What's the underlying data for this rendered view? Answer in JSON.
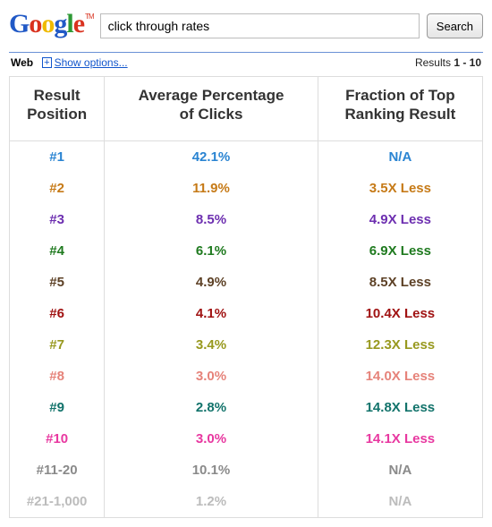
{
  "search": {
    "query": "click through rates",
    "button_label": "Search"
  },
  "bluebar": {
    "web_label": "Web",
    "show_options_label": "Show options...",
    "results_prefix": "Results ",
    "results_range": "1 - 10"
  },
  "table": {
    "headers": {
      "position": "Result\nPosition",
      "percentage": "Average Percentage\nof Clicks",
      "fraction": "Fraction of Top\nRanking Result"
    },
    "rows": [
      {
        "position": "#1",
        "percentage": "42.1%",
        "fraction": "N/A",
        "color": "#2a84d2"
      },
      {
        "position": "#2",
        "percentage": "11.9%",
        "fraction": "3.5X Less",
        "color": "#c67a17"
      },
      {
        "position": "#3",
        "percentage": "8.5%",
        "fraction": "4.9X Less",
        "color": "#6d2fb0"
      },
      {
        "position": "#4",
        "percentage": "6.1%",
        "fraction": "6.9X Less",
        "color": "#1f7a1f"
      },
      {
        "position": "#5",
        "percentage": "4.9%",
        "fraction": "8.5X Less",
        "color": "#5d4126"
      },
      {
        "position": "#6",
        "percentage": "4.1%",
        "fraction": "10.4X Less",
        "color": "#a01212"
      },
      {
        "position": "#7",
        "percentage": "3.4%",
        "fraction": "12.3X Less",
        "color": "#98991f"
      },
      {
        "position": "#8",
        "percentage": "3.0%",
        "fraction": "14.0X Less",
        "color": "#e6837a"
      },
      {
        "position": "#9",
        "percentage": "2.8%",
        "fraction": "14.8X Less",
        "color": "#12736b"
      },
      {
        "position": "#10",
        "percentage": "3.0%",
        "fraction": "14.1X Less",
        "color": "#e838a0"
      },
      {
        "position": "#11-20",
        "percentage": "10.1%",
        "fraction": "N/A",
        "color": "#8a8a8a"
      },
      {
        "position": "#21-1,000",
        "percentage": "1.2%",
        "fraction": "N/A",
        "color": "#bcbcbc"
      }
    ]
  }
}
